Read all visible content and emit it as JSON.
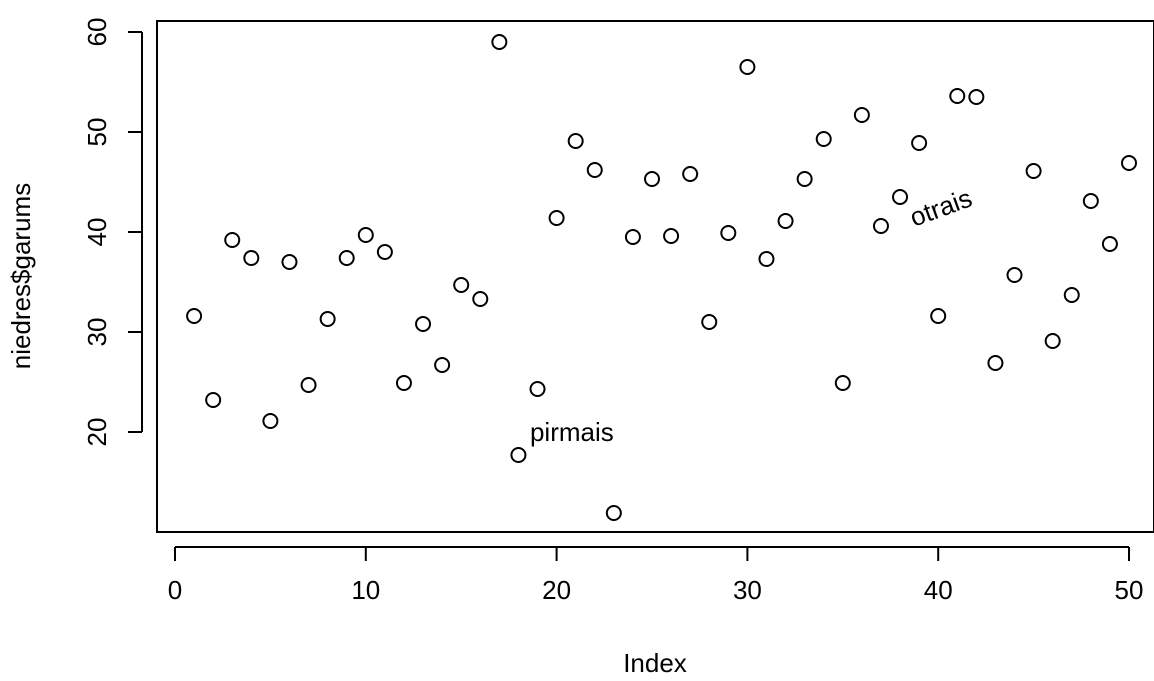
{
  "chart_data": {
    "type": "scatter",
    "title": "",
    "xlabel": "Index",
    "ylabel": "niedres$garums",
    "xlim": [
      0,
      50
    ],
    "ylim": [
      11.9,
      59
    ],
    "grid": false,
    "legend": "none",
    "x_ticks": [
      0,
      10,
      20,
      30,
      40,
      50
    ],
    "y_ticks": [
      20,
      30,
      40,
      50,
      60
    ],
    "x": [
      1,
      2,
      3,
      4,
      5,
      6,
      7,
      8,
      9,
      10,
      11,
      12,
      13,
      14,
      15,
      16,
      17,
      18,
      19,
      20,
      21,
      22,
      23,
      24,
      25,
      26,
      27,
      28,
      29,
      30,
      31,
      32,
      33,
      34,
      35,
      36,
      37,
      38,
      39,
      40,
      41,
      42,
      43,
      44,
      45,
      46,
      47,
      48,
      49,
      50
    ],
    "y": [
      31.6,
      23.2,
      39.2,
      37.4,
      21.1,
      37.0,
      24.7,
      31.3,
      37.4,
      39.7,
      38.0,
      24.9,
      30.8,
      26.7,
      34.7,
      33.3,
      59.0,
      17.7,
      24.3,
      41.4,
      49.1,
      46.2,
      11.9,
      39.5,
      45.3,
      39.6,
      45.8,
      31.0,
      39.9,
      56.5,
      37.3,
      41.1,
      45.3,
      49.3,
      24.9,
      51.7,
      40.6,
      43.5,
      48.9,
      31.6,
      53.6,
      53.5,
      26.9,
      35.7,
      46.1,
      29.1,
      33.7,
      43.1,
      38.8,
      46.9
    ],
    "marker": "open-circle",
    "annotations": [
      {
        "text": "pirmais",
        "x": 20.8,
        "y": 20.0,
        "rotation": 0
      },
      {
        "text": "otrais",
        "x": 40.3,
        "y": 42.5,
        "rotation": -20
      }
    ]
  }
}
